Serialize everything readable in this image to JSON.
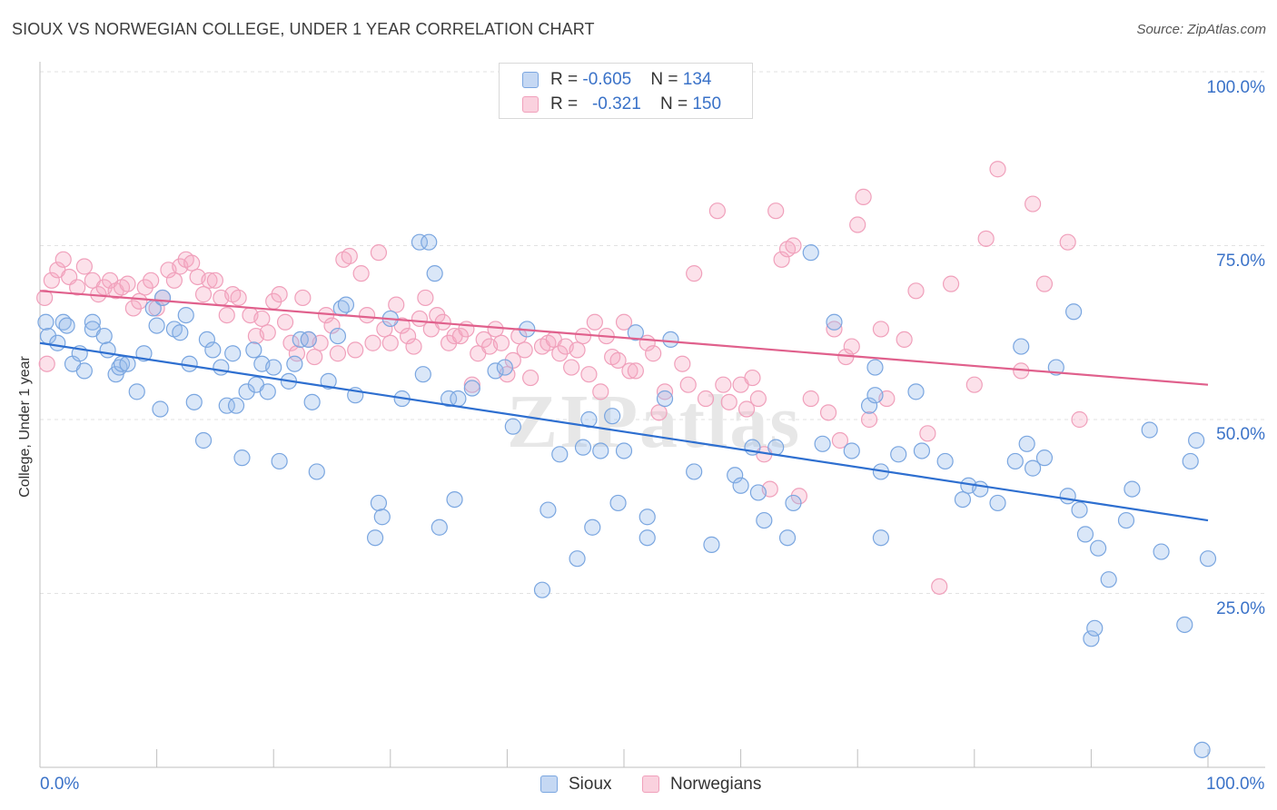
{
  "title": "SIOUX VS NORWEGIAN COLLEGE, UNDER 1 YEAR CORRELATION CHART",
  "source": "Source: ZipAtlas.com",
  "legend": {
    "row1": {
      "prefix": "R = ",
      "r": "-0.605",
      "nlabel": "N = ",
      "n": "134"
    },
    "row2": {
      "prefix": "R = ",
      "r": "-0.321",
      "nlabel": "N = ",
      "n": "150"
    }
  },
  "bottom_legend": {
    "sioux": "Sioux",
    "norwegians": "Norwegians"
  },
  "x_tick_left": "0.0%",
  "x_tick_right": "100.0%",
  "y_ticks": [
    "100.0%",
    "75.0%",
    "50.0%",
    "25.0%"
  ],
  "y_axis_label": "College, Under 1 year",
  "watermark": "ZIPatlas",
  "colors": {
    "sioux": "#7aa6e0",
    "sioux_line": "#2e6fd0",
    "norwegians": "#f0a0bb",
    "norwegians_line": "#e0608c",
    "tick_text": "#3a72c8"
  },
  "chart_data": {
    "type": "scatter",
    "title": "SIOUX VS NORWEGIAN COLLEGE, UNDER 1 YEAR CORRELATION CHART",
    "xlabel": "",
    "ylabel": "College, Under 1 year",
    "xlim": [
      0,
      100
    ],
    "ylim": [
      0,
      100
    ],
    "y_ticks": [
      25,
      50,
      75,
      100
    ],
    "grid": true,
    "legend_position": "top-center",
    "series": [
      {
        "name": "Sioux",
        "r": -0.605,
        "n": 134,
        "trend": {
          "x0": 0,
          "y0": 61.0,
          "x1": 100,
          "y1": 35.5
        },
        "points": [
          [
            0.5,
            64
          ],
          [
            0.7,
            62
          ],
          [
            1.5,
            61
          ],
          [
            2,
            64
          ],
          [
            2.3,
            63.5
          ],
          [
            2.8,
            58
          ],
          [
            3.4,
            59.5
          ],
          [
            3.8,
            57
          ],
          [
            4.5,
            64
          ],
          [
            4.5,
            63
          ],
          [
            5.5,
            62
          ],
          [
            5.8,
            60
          ],
          [
            6.5,
            56.5
          ],
          [
            6.8,
            57.5
          ],
          [
            7,
            58
          ],
          [
            7.5,
            58
          ],
          [
            8.3,
            54
          ],
          [
            8.9,
            59.5
          ],
          [
            9.7,
            66
          ],
          [
            10,
            63.5
          ],
          [
            10.3,
            51.5
          ],
          [
            10.5,
            67.5
          ],
          [
            11.5,
            63
          ],
          [
            12,
            62.5
          ],
          [
            12.5,
            65
          ],
          [
            12.8,
            58
          ],
          [
            13.2,
            52.5
          ],
          [
            14,
            47
          ],
          [
            14.3,
            61.5
          ],
          [
            14.8,
            60
          ],
          [
            15.5,
            57.5
          ],
          [
            16,
            52
          ],
          [
            16.5,
            59.5
          ],
          [
            16.8,
            52
          ],
          [
            17.3,
            44.5
          ],
          [
            17.7,
            54
          ],
          [
            18.3,
            60
          ],
          [
            18.5,
            55
          ],
          [
            19,
            58
          ],
          [
            19.5,
            54
          ],
          [
            20,
            57.5
          ],
          [
            20.5,
            44
          ],
          [
            21.3,
            55.5
          ],
          [
            21.8,
            58
          ],
          [
            22.3,
            61.5
          ],
          [
            23,
            61.5
          ],
          [
            23.3,
            52.5
          ],
          [
            23.7,
            42.5
          ],
          [
            24.7,
            55.5
          ],
          [
            25.5,
            62
          ],
          [
            25.8,
            66
          ],
          [
            26.2,
            66.5
          ],
          [
            27,
            53.5
          ],
          [
            28.7,
            33
          ],
          [
            29,
            38
          ],
          [
            29.3,
            36
          ],
          [
            30,
            64.5
          ],
          [
            31,
            53
          ],
          [
            32.5,
            75.5
          ],
          [
            32.8,
            56.5
          ],
          [
            33.3,
            75.5
          ],
          [
            33.8,
            71
          ],
          [
            34.2,
            34.5
          ],
          [
            35,
            53
          ],
          [
            35.5,
            38.5
          ],
          [
            35.8,
            53
          ],
          [
            37,
            54.5
          ],
          [
            39,
            57
          ],
          [
            39.8,
            57.5
          ],
          [
            40.5,
            49
          ],
          [
            41.7,
            63
          ],
          [
            43,
            25.5
          ],
          [
            43.5,
            37
          ],
          [
            44.5,
            45
          ],
          [
            46,
            30
          ],
          [
            46.5,
            46
          ],
          [
            47,
            50
          ],
          [
            47.3,
            34.5
          ],
          [
            48,
            45.5
          ],
          [
            49,
            50.5
          ],
          [
            49.5,
            38
          ],
          [
            50,
            45.5
          ],
          [
            51,
            62.5
          ],
          [
            52,
            33
          ],
          [
            52,
            36
          ],
          [
            53.5,
            53
          ],
          [
            54,
            61.5
          ],
          [
            56,
            42.5
          ],
          [
            57.5,
            32
          ],
          [
            59.5,
            42
          ],
          [
            60,
            40.5
          ],
          [
            61,
            46
          ],
          [
            61.5,
            39.5
          ],
          [
            62,
            35.5
          ],
          [
            63,
            46
          ],
          [
            64,
            33
          ],
          [
            64.5,
            38
          ],
          [
            66,
            74
          ],
          [
            67,
            46.5
          ],
          [
            68,
            64
          ],
          [
            69.5,
            45.5
          ],
          [
            71,
            52
          ],
          [
            71.5,
            53.5
          ],
          [
            71.5,
            57.5
          ],
          [
            72,
            42.5
          ],
          [
            72,
            33
          ],
          [
            73.5,
            45
          ],
          [
            75,
            54
          ],
          [
            75.5,
            45.5
          ],
          [
            77.5,
            44
          ],
          [
            79,
            38.5
          ],
          [
            79.5,
            40.5
          ],
          [
            80.5,
            40
          ],
          [
            82,
            38
          ],
          [
            83.5,
            44
          ],
          [
            84,
            60.5
          ],
          [
            84.5,
            46.5
          ],
          [
            85,
            43
          ],
          [
            86,
            44.5
          ],
          [
            87,
            57.5
          ],
          [
            88,
            39
          ],
          [
            88.5,
            65.5
          ],
          [
            89,
            37
          ],
          [
            89.5,
            33.5
          ],
          [
            90,
            18.5
          ],
          [
            90.3,
            20
          ],
          [
            90.6,
            31.5
          ],
          [
            91.5,
            27
          ],
          [
            93,
            35.5
          ],
          [
            93.5,
            40
          ],
          [
            95,
            48.5
          ],
          [
            96,
            31
          ],
          [
            98,
            20.5
          ],
          [
            98.5,
            44
          ],
          [
            99,
            47
          ],
          [
            99.5,
            2.5
          ],
          [
            100,
            30
          ]
        ]
      },
      {
        "name": "Norwegians",
        "r": -0.321,
        "n": 150,
        "trend": {
          "x0": 0,
          "y0": 68.5,
          "x1": 100,
          "y1": 55.0
        },
        "points": [
          [
            0.4,
            67.5
          ],
          [
            0.6,
            58
          ],
          [
            1,
            70
          ],
          [
            1.5,
            71.5
          ],
          [
            2,
            73
          ],
          [
            2.5,
            70.5
          ],
          [
            3.2,
            69
          ],
          [
            3.8,
            72
          ],
          [
            4.5,
            70
          ],
          [
            5,
            68
          ],
          [
            5.5,
            69
          ],
          [
            6,
            70
          ],
          [
            6.5,
            68.5
          ],
          [
            7,
            69
          ],
          [
            7.5,
            69.5
          ],
          [
            8,
            66
          ],
          [
            8.5,
            67
          ],
          [
            9,
            69
          ],
          [
            9.5,
            70
          ],
          [
            10,
            66
          ],
          [
            10.5,
            67.5
          ],
          [
            11,
            71.5
          ],
          [
            11.5,
            70
          ],
          [
            12,
            72
          ],
          [
            12.5,
            73
          ],
          [
            13,
            72.5
          ],
          [
            13.5,
            70.5
          ],
          [
            14,
            68
          ],
          [
            14.5,
            70
          ],
          [
            15,
            70
          ],
          [
            15.5,
            67.5
          ],
          [
            16,
            65
          ],
          [
            16.5,
            68
          ],
          [
            17,
            67.5
          ],
          [
            18,
            65
          ],
          [
            18.5,
            62
          ],
          [
            19,
            64.5
          ],
          [
            19.5,
            62.5
          ],
          [
            20,
            67
          ],
          [
            20.5,
            68
          ],
          [
            21,
            64
          ],
          [
            21.5,
            61
          ],
          [
            22,
            59.5
          ],
          [
            22.5,
            67.5
          ],
          [
            23,
            61.5
          ],
          [
            23.5,
            59
          ],
          [
            24,
            61
          ],
          [
            24.5,
            65
          ],
          [
            25,
            63.5
          ],
          [
            25.5,
            59.5
          ],
          [
            26,
            73
          ],
          [
            26.5,
            73.5
          ],
          [
            27,
            60
          ],
          [
            27.5,
            71
          ],
          [
            28,
            65
          ],
          [
            28.5,
            61
          ],
          [
            29,
            74
          ],
          [
            29.5,
            63
          ],
          [
            30,
            61
          ],
          [
            30.5,
            66.5
          ],
          [
            31,
            63.5
          ],
          [
            31.5,
            62
          ],
          [
            32,
            60.5
          ],
          [
            32.5,
            64.5
          ],
          [
            33,
            67.5
          ],
          [
            33.5,
            63
          ],
          [
            34,
            65
          ],
          [
            34.5,
            64
          ],
          [
            35,
            61
          ],
          [
            35.5,
            62
          ],
          [
            36,
            62
          ],
          [
            36.5,
            63
          ],
          [
            37,
            55
          ],
          [
            37.5,
            59.5
          ],
          [
            38,
            61.5
          ],
          [
            38.5,
            60.5
          ],
          [
            39,
            63
          ],
          [
            39.5,
            61
          ],
          [
            40,
            56.5
          ],
          [
            40.5,
            58.5
          ],
          [
            41,
            62
          ],
          [
            41.5,
            60
          ],
          [
            42,
            56
          ],
          [
            43,
            60.5
          ],
          [
            43.5,
            61
          ],
          [
            44,
            61.5
          ],
          [
            44.5,
            59.5
          ],
          [
            45,
            60.5
          ],
          [
            45.5,
            57.5
          ],
          [
            46,
            60
          ],
          [
            46.5,
            62
          ],
          [
            47,
            56.5
          ],
          [
            47.5,
            64
          ],
          [
            48,
            54
          ],
          [
            48.5,
            62
          ],
          [
            49,
            59
          ],
          [
            49.5,
            58.5
          ],
          [
            50,
            64
          ],
          [
            50.5,
            57
          ],
          [
            51,
            57
          ],
          [
            52,
            61
          ],
          [
            52.5,
            59.5
          ],
          [
            53,
            51
          ],
          [
            53.5,
            54
          ],
          [
            55,
            58
          ],
          [
            55.5,
            55
          ],
          [
            56,
            71
          ],
          [
            57,
            53
          ],
          [
            58,
            80
          ],
          [
            58.5,
            55
          ],
          [
            59,
            52.5
          ],
          [
            60,
            55
          ],
          [
            60.5,
            51.5
          ],
          [
            61,
            56
          ],
          [
            61.5,
            53
          ],
          [
            62,
            45
          ],
          [
            62.5,
            40
          ],
          [
            63,
            80
          ],
          [
            63.5,
            73
          ],
          [
            64,
            74.5
          ],
          [
            64.5,
            75
          ],
          [
            65,
            39
          ],
          [
            66,
            53
          ],
          [
            67.5,
            51
          ],
          [
            68,
            63
          ],
          [
            68.5,
            47
          ],
          [
            69,
            59
          ],
          [
            69.5,
            60.5
          ],
          [
            70,
            78
          ],
          [
            70.5,
            82
          ],
          [
            71,
            50
          ],
          [
            72,
            63
          ],
          [
            72.5,
            53
          ],
          [
            74,
            61.5
          ],
          [
            75,
            68.5
          ],
          [
            76,
            48
          ],
          [
            77,
            26
          ],
          [
            78,
            69.5
          ],
          [
            80,
            55
          ],
          [
            81,
            76
          ],
          [
            82,
            86
          ],
          [
            84,
            57
          ],
          [
            85,
            81
          ],
          [
            86,
            69.5
          ],
          [
            88,
            75.5
          ],
          [
            89,
            50
          ]
        ]
      }
    ]
  }
}
